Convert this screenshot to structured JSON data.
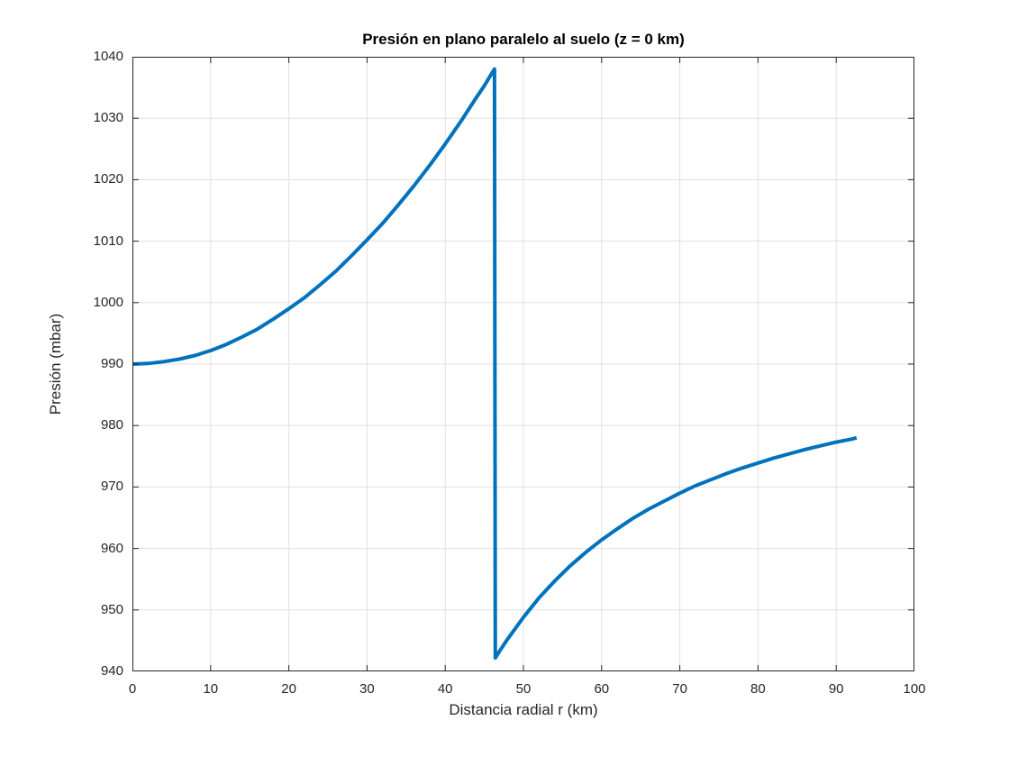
{
  "chart_data": {
    "type": "line",
    "title": "Presión en plano paralelo al suelo (z = 0 km)",
    "xlabel": "Distancia radial r (km)",
    "ylabel": "Presión (mbar)",
    "xlim": [
      0,
      100
    ],
    "ylim": [
      940,
      1040
    ],
    "x_ticks": [
      0,
      10,
      20,
      30,
      40,
      50,
      60,
      70,
      80,
      90,
      100
    ],
    "y_ticks": [
      940,
      950,
      960,
      970,
      980,
      990,
      1000,
      1010,
      1020,
      1030,
      1040
    ],
    "grid": true,
    "legend_position": "none",
    "line_width": 4,
    "colors": {
      "line": "#0072bd",
      "axis": "#262626",
      "grid": "#e0e0e0",
      "title": "#000000",
      "background": "#ffffff"
    },
    "series": [
      {
        "name": "pressure",
        "points": [
          [
            0,
            990.0
          ],
          [
            2,
            990.1
          ],
          [
            4,
            990.4
          ],
          [
            6,
            990.8
          ],
          [
            8,
            991.4
          ],
          [
            10,
            992.2
          ],
          [
            12,
            993.2
          ],
          [
            14,
            994.4
          ],
          [
            16,
            995.7
          ],
          [
            18,
            997.3
          ],
          [
            20,
            999.0
          ],
          [
            22,
            1000.8
          ],
          [
            24,
            1002.9
          ],
          [
            26,
            1005.1
          ],
          [
            28,
            1007.6
          ],
          [
            30,
            1010.2
          ],
          [
            32,
            1012.9
          ],
          [
            34,
            1015.9
          ],
          [
            36,
            1019.0
          ],
          [
            38,
            1022.3
          ],
          [
            40,
            1025.8
          ],
          [
            42,
            1029.5
          ],
          [
            44,
            1033.4
          ],
          [
            45,
            1035.3
          ],
          [
            46,
            1037.4
          ],
          [
            46.3,
            1038.0
          ],
          [
            46.4,
            942.2
          ],
          [
            47,
            943.4
          ],
          [
            48,
            945.3
          ],
          [
            50,
            948.8
          ],
          [
            52,
            952.0
          ],
          [
            54,
            954.7
          ],
          [
            56,
            957.2
          ],
          [
            58,
            959.4
          ],
          [
            60,
            961.4
          ],
          [
            62,
            963.2
          ],
          [
            64,
            964.9
          ],
          [
            66,
            966.4
          ],
          [
            68,
            967.7
          ],
          [
            70,
            969.0
          ],
          [
            72,
            970.2
          ],
          [
            74,
            971.2
          ],
          [
            76,
            972.2
          ],
          [
            78,
            973.1
          ],
          [
            80,
            973.9
          ],
          [
            82,
            974.7
          ],
          [
            84,
            975.4
          ],
          [
            86,
            976.1
          ],
          [
            88,
            976.7
          ],
          [
            90,
            977.3
          ],
          [
            92,
            977.8
          ],
          [
            92.6,
            978.0
          ]
        ]
      }
    ]
  }
}
